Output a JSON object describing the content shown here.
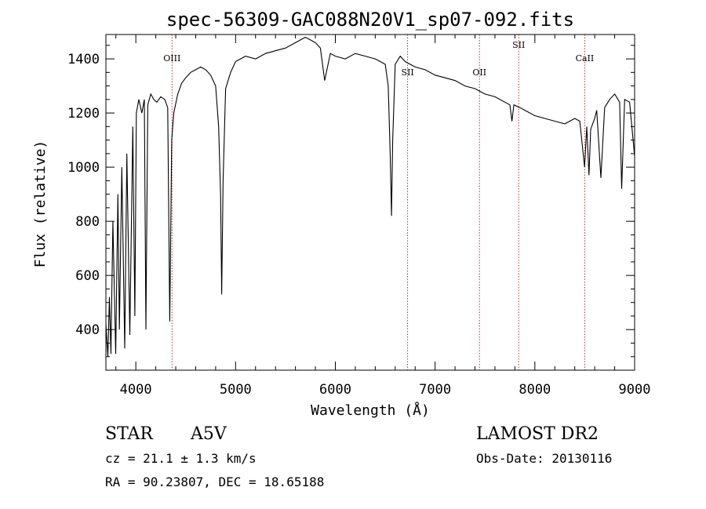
{
  "chart_data": {
    "type": "line",
    "title": "spec-56309-GAC088N20V1_sp07-092.fits",
    "xlabel": "Wavelength (Å)",
    "ylabel": "Flux (relative)",
    "xlim": [
      3700,
      9000
    ],
    "ylim": [
      250,
      1490
    ],
    "xticks": [
      4000,
      5000,
      6000,
      7000,
      8000,
      9000
    ],
    "yticks": [
      400,
      600,
      800,
      1000,
      1200,
      1400
    ],
    "grid": false,
    "series": [
      {
        "x": [
          3700,
          3720,
          3735,
          3750,
          3770,
          3798,
          3820,
          3835,
          3860,
          3889,
          3910,
          3940,
          3970,
          3990,
          4005,
          4030,
          4060,
          4085,
          4101,
          4120,
          4150,
          4180,
          4210,
          4250,
          4290,
          4320,
          4340,
          4360,
          4380,
          4420,
          4460,
          4500,
          4550,
          4600,
          4650,
          4700,
          4750,
          4800,
          4830,
          4850,
          4861,
          4875,
          4900,
          4950,
          5000,
          5100,
          5200,
          5300,
          5400,
          5500,
          5600,
          5650,
          5700,
          5750,
          5800,
          5850,
          5893,
          5950,
          6000,
          6100,
          6200,
          6300,
          6400,
          6450,
          6500,
          6530,
          6550,
          6563,
          6575,
          6600,
          6650,
          6700,
          6800,
          6900,
          7000,
          7100,
          7200,
          7300,
          7400,
          7500,
          7600,
          7700,
          7750,
          7770,
          7790,
          7850,
          7900,
          8000,
          8100,
          8200,
          8300,
          8400,
          8450,
          8498,
          8520,
          8542,
          8560,
          8600,
          8620,
          8662,
          8700,
          8750,
          8800,
          8850,
          8870,
          8900,
          8950,
          9000
        ],
        "values": [
          420,
          300,
          520,
          310,
          800,
          310,
          900,
          400,
          1000,
          330,
          1050,
          380,
          1150,
          450,
          1200,
          1250,
          1200,
          1250,
          400,
          1230,
          1270,
          1250,
          1240,
          1260,
          1250,
          1220,
          430,
          1100,
          1200,
          1270,
          1310,
          1330,
          1350,
          1360,
          1370,
          1360,
          1340,
          1300,
          1150,
          900,
          530,
          950,
          1290,
          1350,
          1390,
          1410,
          1400,
          1420,
          1430,
          1440,
          1460,
          1470,
          1480,
          1470,
          1460,
          1440,
          1320,
          1420,
          1410,
          1400,
          1420,
          1410,
          1400,
          1390,
          1380,
          1300,
          1050,
          820,
          1100,
          1380,
          1410,
          1390,
          1370,
          1360,
          1340,
          1330,
          1320,
          1300,
          1290,
          1270,
          1260,
          1240,
          1230,
          1170,
          1230,
          1220,
          1210,
          1190,
          1180,
          1170,
          1160,
          1180,
          1170,
          1000,
          1150,
          970,
          1140,
          1180,
          1210,
          960,
          1220,
          1250,
          1270,
          1240,
          920,
          1250,
          1240,
          1040
        ]
      }
    ],
    "line_markers": [
      {
        "label": "OIII",
        "x": 4363
      },
      {
        "label": "SII",
        "x": 6724
      },
      {
        "label": "OII",
        "x": 7445
      },
      {
        "label": "SII",
        "x": 7838
      },
      {
        "label": "CaII",
        "x": 8500
      }
    ]
  },
  "footer": {
    "object_type": "STAR",
    "subclass": "A5V",
    "survey": "LAMOST DR2",
    "cz": "cz = 21.1 ± 1.3 km/s",
    "obs_date": "Obs-Date: 20130116",
    "coords": "RA =  90.23807, DEC =  18.65188"
  }
}
